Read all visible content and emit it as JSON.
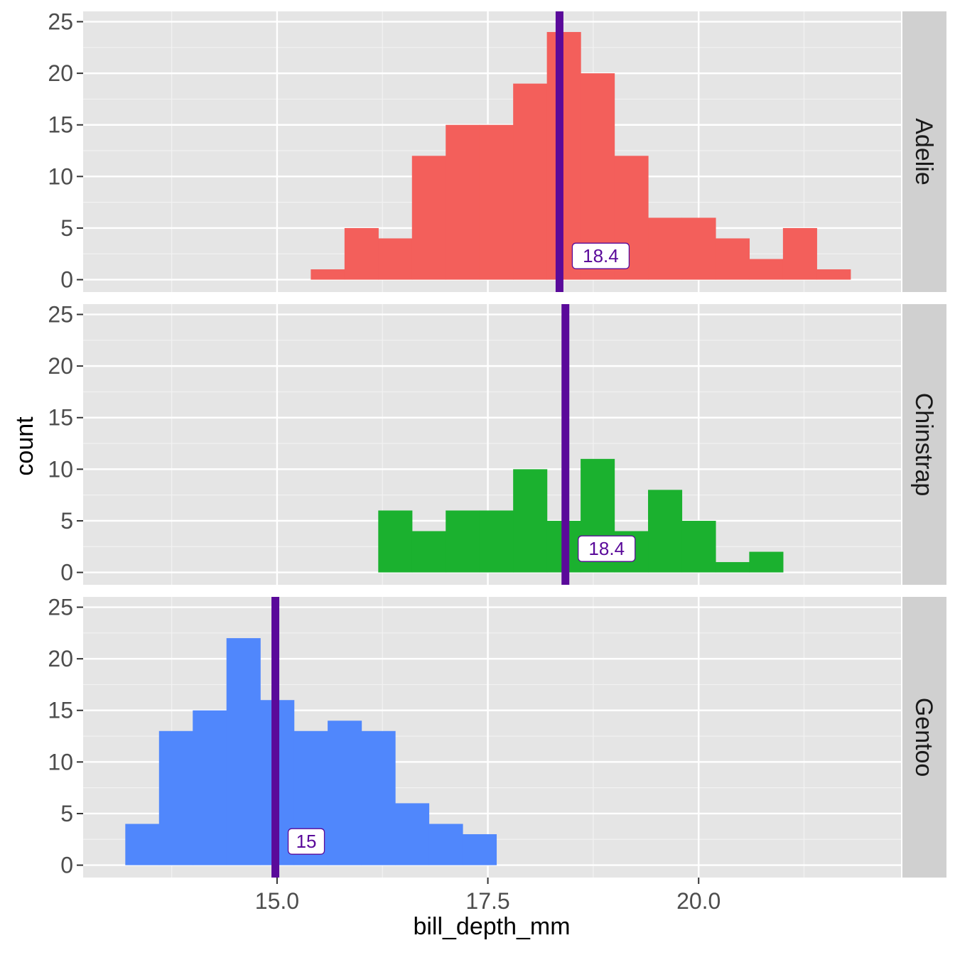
{
  "chart_data": {
    "type": "bar",
    "subtype": "faceted-histogram",
    "xlabel": "bill_depth_mm",
    "ylabel": "count",
    "xlim": [
      12.7,
      22.4
    ],
    "ylim": [
      -1.2,
      26
    ],
    "x_ticks": [
      15.0,
      17.5,
      20.0
    ],
    "x_tick_labels": [
      "15.0",
      "17.5",
      "20.0"
    ],
    "y_ticks": [
      0,
      5,
      10,
      15,
      20,
      25
    ],
    "y_tick_labels": [
      "0",
      "5",
      "10",
      "15",
      "20",
      "25"
    ],
    "bin_width": 0.4,
    "grid": true,
    "mean_line_color": "#5a0a9a",
    "panels": [
      {
        "name": "Adelie",
        "color": "#f35f5b",
        "bins_start": [
          15.4,
          15.8,
          16.2,
          16.6,
          17.0,
          17.4,
          17.8,
          18.2,
          18.6,
          19.0,
          19.4,
          19.8,
          20.2,
          20.6,
          21.0,
          21.4
        ],
        "counts": [
          1,
          5,
          4,
          12,
          15,
          15,
          19,
          24,
          20,
          12,
          6,
          6,
          4,
          2,
          5,
          1
        ],
        "mean": 18.35,
        "mean_label": "18.4"
      },
      {
        "name": "Chinstrap",
        "color": "#1bb12f",
        "bins_start": [
          16.2,
          16.6,
          17.0,
          17.4,
          17.8,
          18.2,
          18.6,
          19.0,
          19.4,
          19.8,
          20.2,
          20.6
        ],
        "counts": [
          6,
          4,
          6,
          6,
          10,
          5,
          11,
          4,
          8,
          5,
          1,
          2
        ],
        "mean": 18.42,
        "mean_label": "18.4"
      },
      {
        "name": "Gentoo",
        "color": "#5087fc",
        "bins_start": [
          13.2,
          13.6,
          14.0,
          14.4,
          14.8,
          15.2,
          15.6,
          16.0,
          16.4,
          16.8,
          17.2
        ],
        "counts": [
          4,
          13,
          15,
          22,
          16,
          13,
          14,
          13,
          6,
          4,
          3
        ],
        "mean": 14.98,
        "mean_label": "15"
      }
    ]
  }
}
